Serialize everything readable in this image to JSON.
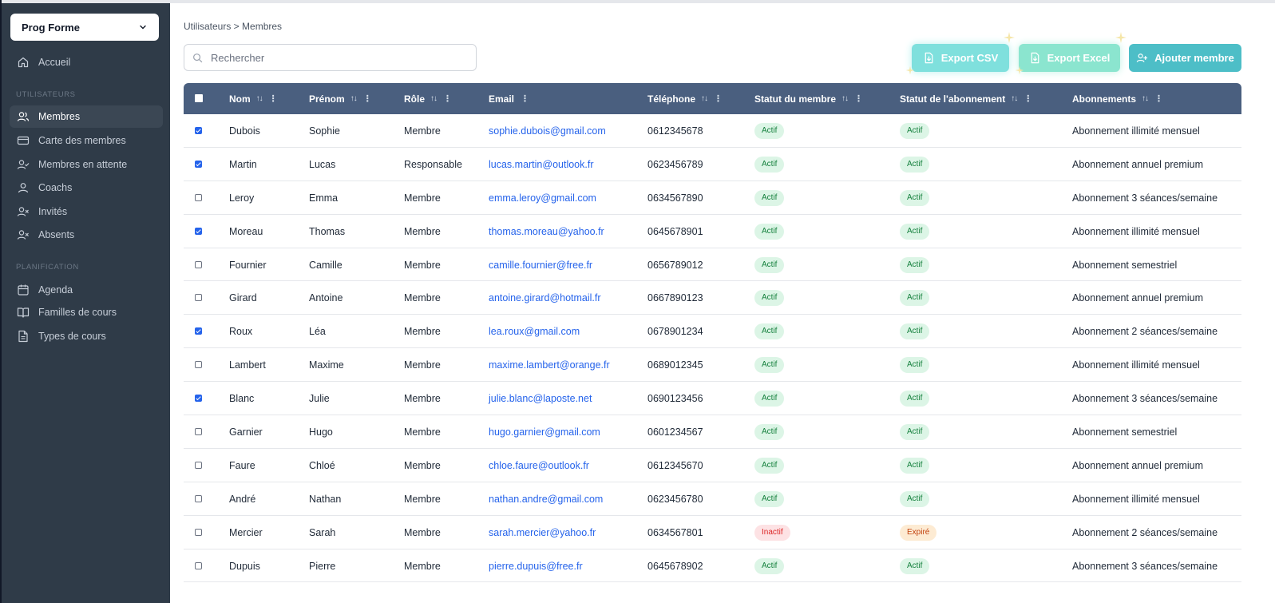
{
  "sidebar": {
    "org": "Prog Forme",
    "home": "Accueil",
    "sections": [
      {
        "title": "UTILISATEURS",
        "items": [
          {
            "label": "Membres",
            "icon": "users-icon",
            "active": true
          },
          {
            "label": "Carte des membres",
            "icon": "card-icon"
          },
          {
            "label": "Membres en attente",
            "icon": "user-check-icon"
          },
          {
            "label": "Coachs",
            "icon": "user-icon"
          },
          {
            "label": "Invités",
            "icon": "user-x-icon"
          },
          {
            "label": "Absents",
            "icon": "user-x-icon"
          }
        ]
      },
      {
        "title": "PLANIFICATION",
        "items": [
          {
            "label": "Agenda",
            "icon": "calendar-icon"
          },
          {
            "label": "Familles de cours",
            "icon": "book-icon"
          },
          {
            "label": "Types de cours",
            "icon": "file-icon"
          }
        ]
      }
    ]
  },
  "main": {
    "breadcrumb": "Utilisateurs > Membres",
    "search_placeholder": "Rechercher",
    "buttons": {
      "export_csv": "Export CSV",
      "export_excel": "Export Excel",
      "add_member": "Ajouter membre"
    }
  },
  "table": {
    "columns": [
      "Nom",
      "Prénom",
      "Rôle",
      "Email",
      "Téléphone",
      "Statut du membre",
      "Statut de l'abonnement",
      "Abonnements"
    ],
    "rows": [
      {
        "checked": true,
        "nom": "Dubois",
        "prenom": "Sophie",
        "role": "Membre",
        "email": "sophie.dubois@gmail.com",
        "tel": "0612345678",
        "statut": "Actif",
        "abo_statut": "Actif",
        "abonnement": "Abonnement illimité mensuel"
      },
      {
        "checked": true,
        "nom": "Martin",
        "prenom": "Lucas",
        "role": "Responsable",
        "email": "lucas.martin@outlook.fr",
        "tel": "0623456789",
        "statut": "Actif",
        "abo_statut": "Actif",
        "abonnement": "Abonnement annuel premium"
      },
      {
        "checked": false,
        "nom": "Leroy",
        "prenom": "Emma",
        "role": "Membre",
        "email": "emma.leroy@gmail.com",
        "tel": "0634567890",
        "statut": "Actif",
        "abo_statut": "Actif",
        "abonnement": "Abonnement 3 séances/semaine"
      },
      {
        "checked": true,
        "nom": "Moreau",
        "prenom": "Thomas",
        "role": "Membre",
        "email": "thomas.moreau@yahoo.fr",
        "tel": "0645678901",
        "statut": "Actif",
        "abo_statut": "Actif",
        "abonnement": "Abonnement illimité mensuel"
      },
      {
        "checked": false,
        "nom": "Fournier",
        "prenom": "Camille",
        "role": "Membre",
        "email": "camille.fournier@free.fr",
        "tel": "0656789012",
        "statut": "Actif",
        "abo_statut": "Actif",
        "abonnement": "Abonnement semestriel"
      },
      {
        "checked": false,
        "nom": "Girard",
        "prenom": "Antoine",
        "role": "Membre",
        "email": "antoine.girard@hotmail.fr",
        "tel": "0667890123",
        "statut": "Actif",
        "abo_statut": "Actif",
        "abonnement": "Abonnement annuel premium"
      },
      {
        "checked": true,
        "nom": "Roux",
        "prenom": "Léa",
        "role": "Membre",
        "email": "lea.roux@gmail.com",
        "tel": "0678901234",
        "statut": "Actif",
        "abo_statut": "Actif",
        "abonnement": "Abonnement 2 séances/semaine"
      },
      {
        "checked": false,
        "nom": "Lambert",
        "prenom": "Maxime",
        "role": "Membre",
        "email": "maxime.lambert@orange.fr",
        "tel": "0689012345",
        "statut": "Actif",
        "abo_statut": "Actif",
        "abonnement": "Abonnement illimité mensuel"
      },
      {
        "checked": true,
        "nom": "Blanc",
        "prenom": "Julie",
        "role": "Membre",
        "email": "julie.blanc@laposte.net",
        "tel": "0690123456",
        "statut": "Actif",
        "abo_statut": "Actif",
        "abonnement": "Abonnement 3 séances/semaine"
      },
      {
        "checked": false,
        "nom": "Garnier",
        "prenom": "Hugo",
        "role": "Membre",
        "email": "hugo.garnier@gmail.com",
        "tel": "0601234567",
        "statut": "Actif",
        "abo_statut": "Actif",
        "abonnement": "Abonnement semestriel"
      },
      {
        "checked": false,
        "nom": "Faure",
        "prenom": "Chloé",
        "role": "Membre",
        "email": "chloe.faure@outlook.fr",
        "tel": "0612345670",
        "statut": "Actif",
        "abo_statut": "Actif",
        "abonnement": "Abonnement annuel premium"
      },
      {
        "checked": false,
        "nom": "André",
        "prenom": "Nathan",
        "role": "Membre",
        "email": "nathan.andre@gmail.com",
        "tel": "0623456780",
        "statut": "Actif",
        "abo_statut": "Actif",
        "abonnement": "Abonnement illimité mensuel"
      },
      {
        "checked": false,
        "nom": "Mercier",
        "prenom": "Sarah",
        "role": "Membre",
        "email": "sarah.mercier@yahoo.fr",
        "tel": "0634567801",
        "statut": "Inactif",
        "abo_statut": "Expiré",
        "abonnement": "Abonnement 2 séances/semaine"
      },
      {
        "checked": false,
        "nom": "Dupuis",
        "prenom": "Pierre",
        "role": "Membre",
        "email": "pierre.dupuis@free.fr",
        "tel": "0645678902",
        "statut": "Actif",
        "abo_statut": "Actif",
        "abonnement": "Abonnement 3 séances/semaine"
      }
    ]
  },
  "colors": {
    "sidebar_bg": "#2f3b48",
    "header_bg": "#4a5f7f",
    "accent": "#4dbec7",
    "link": "#2563eb"
  }
}
